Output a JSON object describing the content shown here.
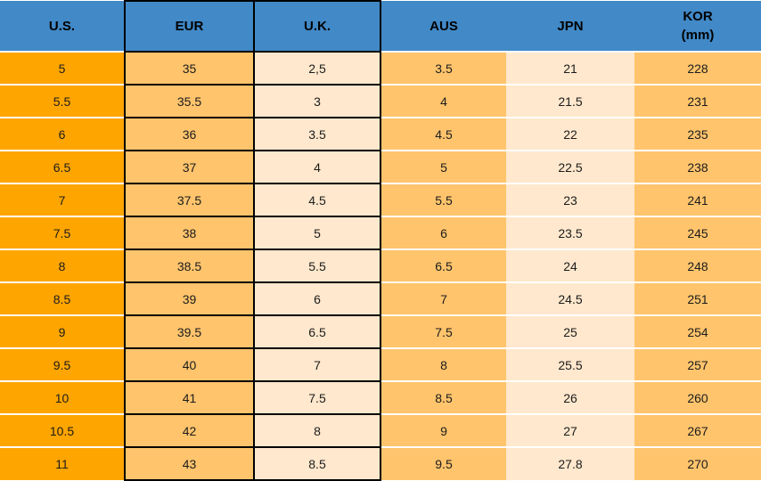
{
  "chart_data": {
    "type": "table",
    "columns": [
      {
        "id": "us",
        "label": "U.S.",
        "sublabel": ""
      },
      {
        "id": "eur",
        "label": "EUR",
        "sublabel": ""
      },
      {
        "id": "uk",
        "label": "U.K.",
        "sublabel": ""
      },
      {
        "id": "aus",
        "label": "AUS",
        "sublabel": ""
      },
      {
        "id": "jpn",
        "label": "JPN",
        "sublabel": ""
      },
      {
        "id": "kor",
        "label": "KOR",
        "sublabel": "(mm)"
      }
    ],
    "rows": [
      [
        "5",
        "35",
        "2,5",
        "3.5",
        "21",
        "228"
      ],
      [
        "5.5",
        "35.5",
        "3",
        "4",
        "21.5",
        "231"
      ],
      [
        "6",
        "36",
        "3.5",
        "4.5",
        "22",
        "235"
      ],
      [
        "6.5",
        "37",
        "4",
        "5",
        "22.5",
        "238"
      ],
      [
        "7",
        "37.5",
        "4.5",
        "5.5",
        "23",
        "241"
      ],
      [
        "7.5",
        "38",
        "5",
        "6",
        "23.5",
        "245"
      ],
      [
        "8",
        "38.5",
        "5.5",
        "6.5",
        "24",
        "248"
      ],
      [
        "8.5",
        "39",
        "6",
        "7",
        "24.5",
        "251"
      ],
      [
        "9",
        "39.5",
        "6.5",
        "7.5",
        "25",
        "254"
      ],
      [
        "9.5",
        "40",
        "7",
        "8",
        "25.5",
        "257"
      ],
      [
        "10",
        "41",
        "7.5",
        "8.5",
        "26",
        "260"
      ],
      [
        "10.5",
        "42",
        "8",
        "9",
        "27",
        "267"
      ],
      [
        "11",
        "43",
        "8.5",
        "9.5",
        "27.8",
        "270"
      ]
    ]
  },
  "colors": {
    "header_bg": "#4189C7",
    "header_text": "#000000",
    "cell_text": "#1C1C1C",
    "us_column_bg": "#FFA500",
    "orange_column_bg": "#FFC46C",
    "cream_column_bg": "#FFE8CD",
    "grid_border": "#000000",
    "row_separator": "#FFFFFF"
  }
}
